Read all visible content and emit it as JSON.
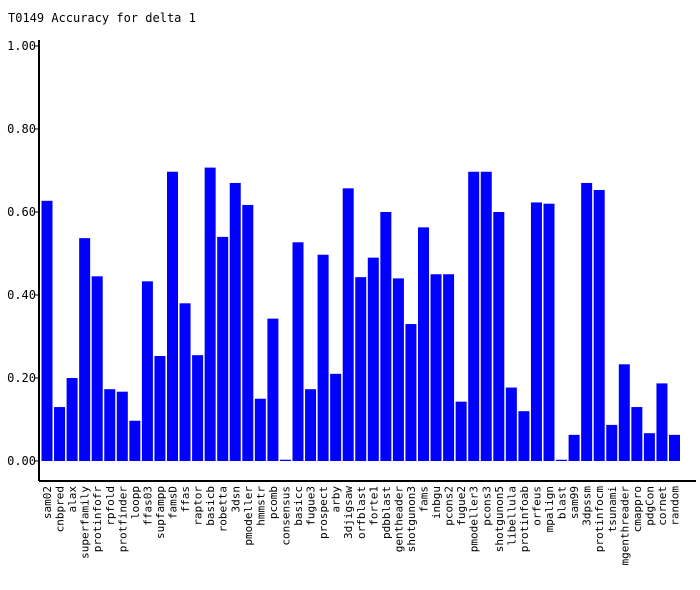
{
  "chart_data": {
    "type": "bar",
    "title": "T0149 Accuracy for delta 1",
    "xlabel": "",
    "ylabel": "",
    "ylim": [
      0,
      1
    ],
    "yticks": [
      "0.00",
      "0.20",
      "0.40",
      "0.60",
      "0.80",
      "1.00"
    ],
    "bar_color": "#0000ff",
    "grid": false,
    "categories": [
      "sam02",
      "cnbpred",
      "alax",
      "superfamily",
      "protinfofr",
      "rpfold",
      "protfinder",
      "loopp",
      "ffas03",
      "supfampp",
      "famsD",
      "ffas",
      "raptor",
      "basicb",
      "robetta",
      "3dsn",
      "pmodeller",
      "hmmstr",
      "pcomb",
      "consensus",
      "basicc",
      "fugue3",
      "prospect",
      "arby",
      "3djigsaw",
      "orfblast",
      "forte1",
      "pdbblast",
      "gentheader",
      "shotgunon3",
      "fams",
      "inbgu",
      "pcons2",
      "fugue2",
      "pmodeller3",
      "pcons3",
      "shotgunon5",
      "libellula",
      "protinfoab",
      "orfeus",
      "mpalign",
      "blast",
      "sam99",
      "3dpssm",
      "protinfocm",
      "tsunami",
      "mgenthreader",
      "cmappro",
      "pdgCon",
      "cornet",
      "random"
    ],
    "values": [
      0.627,
      0.13,
      0.2,
      0.537,
      0.445,
      0.173,
      0.167,
      0.097,
      0.433,
      0.253,
      0.697,
      0.38,
      0.255,
      0.707,
      0.54,
      0.67,
      0.617,
      0.15,
      0.343,
      0.003,
      0.527,
      0.173,
      0.497,
      0.21,
      0.657,
      0.443,
      0.49,
      0.6,
      0.44,
      0.33,
      0.563,
      0.45,
      0.45,
      0.143,
      0.697,
      0.697,
      0.6,
      0.177,
      0.12,
      0.623,
      0.62,
      0.003,
      0.063,
      0.67,
      0.653,
      0.087,
      0.233,
      0.13,
      0.067,
      0.187,
      0.063
    ]
  }
}
